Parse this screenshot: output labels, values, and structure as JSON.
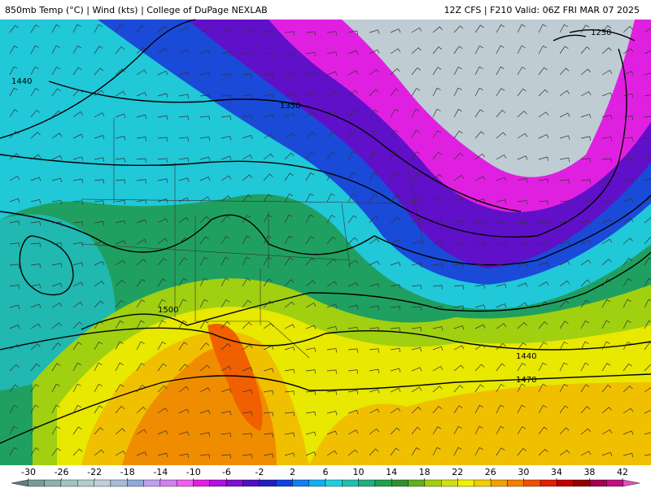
{
  "header": {
    "left": "850mb Temp (°C) | Wind (kts) | College of DuPage NEXLAB",
    "right": "12Z CFS | F210 Valid: 06Z FRI MAR 07 2025"
  },
  "contour_labels": [
    "1440",
    "1350",
    "1230",
    "1500",
    "1440",
    "1470"
  ],
  "colorbar": {
    "ticks": [
      -30,
      -26,
      -22,
      -18,
      -14,
      -10,
      -6,
      -2,
      2,
      6,
      10,
      14,
      18,
      22,
      26,
      30,
      34,
      38,
      42
    ],
    "colors": [
      "#5f7f7f",
      "#7a9a9a",
      "#8fb0b0",
      "#a3c3c3",
      "#b4cccc",
      "#c0d0d8",
      "#a8bcd8",
      "#90a8d8",
      "#c0a0f0",
      "#d080f0",
      "#f060f0",
      "#e020e0",
      "#b010e0",
      "#8010d0",
      "#5010c0",
      "#2020c0",
      "#1040e0",
      "#1080f0",
      "#10b0f0",
      "#20d0e0",
      "#20c0b0",
      "#20b080",
      "#20a050",
      "#309030",
      "#60b020",
      "#a0d010",
      "#d0e010",
      "#f0f000",
      "#f0d000",
      "#f0a000",
      "#f08000",
      "#f05000",
      "#e02000",
      "#c00000",
      "#900000",
      "#a00050",
      "#c01080",
      "#e050c0"
    ]
  }
}
